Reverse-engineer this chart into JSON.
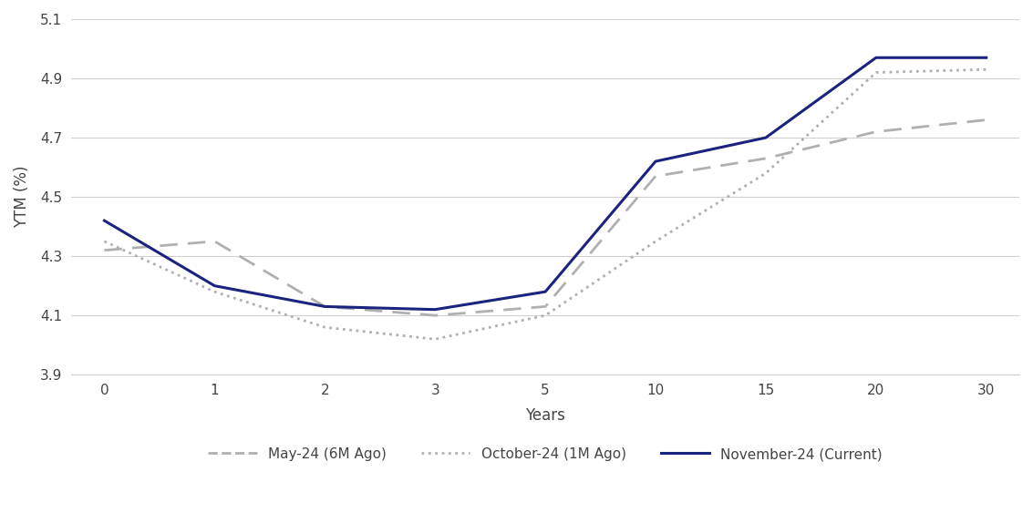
{
  "x_labels": [
    0,
    1,
    2,
    3,
    5,
    10,
    15,
    20,
    30
  ],
  "x_positions": [
    0,
    1,
    2,
    3,
    4,
    5,
    6,
    7,
    8
  ],
  "may24": [
    4.32,
    4.35,
    4.13,
    4.1,
    4.13,
    4.57,
    4.63,
    4.72,
    4.76
  ],
  "oct24": [
    4.35,
    4.18,
    4.06,
    4.02,
    4.1,
    4.35,
    4.58,
    4.92,
    4.93
  ],
  "nov24": [
    4.42,
    4.2,
    4.13,
    4.12,
    4.18,
    4.62,
    4.7,
    4.97,
    4.97
  ],
  "may24_color": "#b0b0b0",
  "oct24_color": "#b0b0b0",
  "nov24_color": "#1a237e",
  "background_color": "#ffffff",
  "xlabel": "Years",
  "ylabel": "YTM (%)",
  "ylim": [
    3.9,
    5.1
  ],
  "yticks": [
    3.9,
    4.1,
    4.3,
    4.5,
    4.7,
    4.9,
    5.1
  ],
  "legend_labels": [
    "May-24 (6M Ago)",
    "October-24 (1M Ago)",
    "November-24 (Current)"
  ]
}
